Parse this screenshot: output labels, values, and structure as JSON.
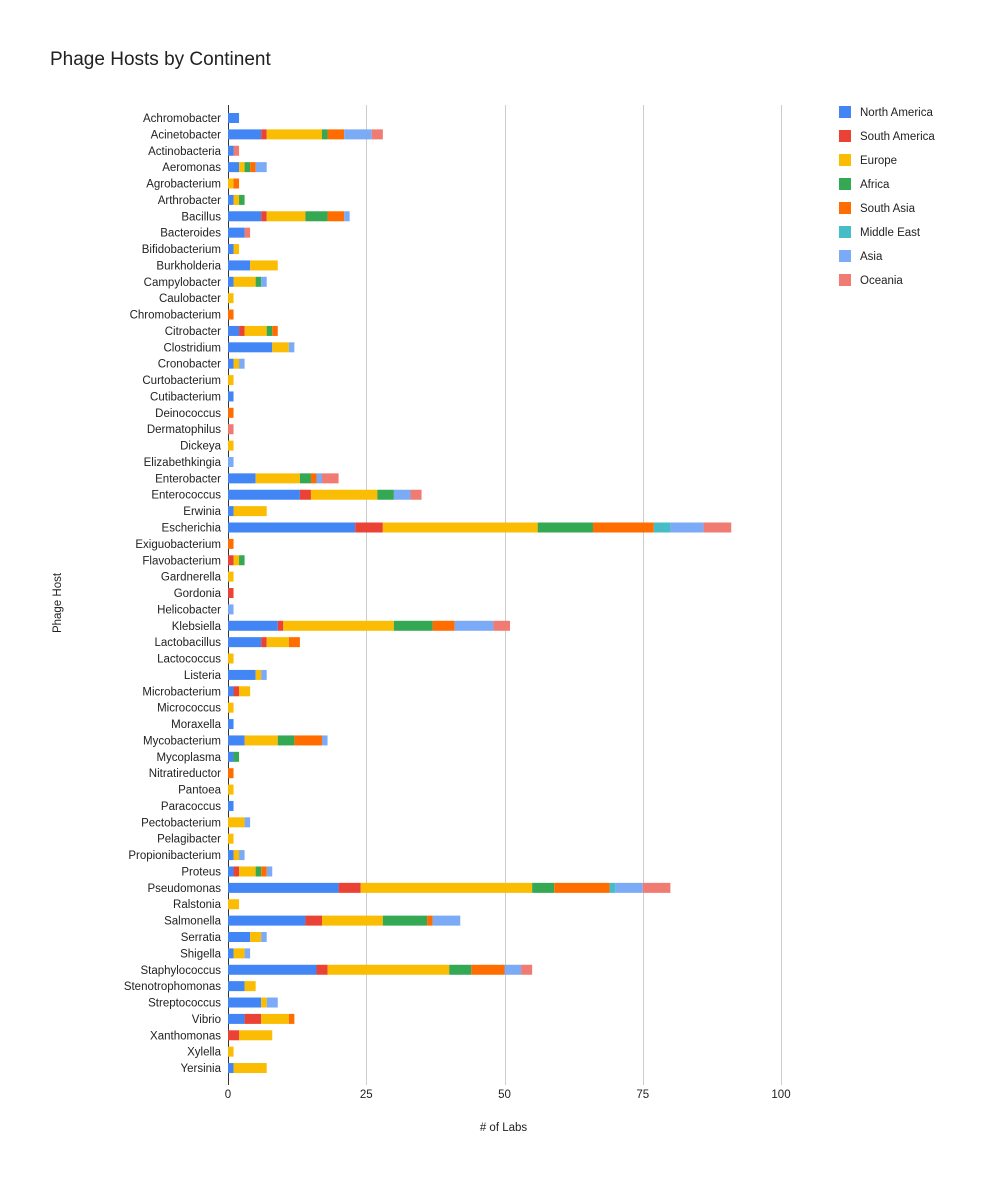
{
  "chart_data": {
    "type": "bar",
    "orientation": "horizontal",
    "stacked": true,
    "title": "Phage Hosts by Continent",
    "xlabel": "# of Labs",
    "ylabel": "Phage Host",
    "xlim": [
      0,
      100
    ],
    "xticks": [
      0,
      25,
      50,
      75,
      100
    ],
    "grid": true,
    "legend_position": "right",
    "categories": [
      "Achromobacter",
      "Acinetobacter",
      "Actinobacteria",
      "Aeromonas",
      "Agrobacterium",
      "Arthrobacter",
      "Bacillus",
      "Bacteroides",
      "Bifidobacterium",
      "Burkholderia",
      "Campylobacter",
      "Caulobacter",
      "Chromobacterium",
      "Citrobacter",
      "Clostridium",
      "Cronobacter",
      "Curtobacterium",
      "Cutibacterium",
      "Deinococcus",
      "Dermatophilus",
      "Dickeya",
      "Elizabethkingia",
      "Enterobacter",
      "Enterococcus",
      "Erwinia",
      "Escherichia",
      "Exiguobacterium",
      "Flavobacterium",
      "Gardnerella",
      "Gordonia",
      "Helicobacter",
      "Klebsiella",
      "Lactobacillus",
      "Lactococcus",
      "Listeria",
      "Microbacterium",
      "Micrococcus",
      "Moraxella",
      "Mycobacterium",
      "Mycoplasma",
      "Nitratireductor",
      "Pantoea",
      "Paracoccus",
      "Pectobacterium",
      "Pelagibacter",
      "Propionibacterium",
      "Proteus",
      "Pseudomonas",
      "Ralstonia",
      "Salmonella",
      "Serratia",
      "Shigella",
      "Staphylococcus",
      "Stenotrophomonas",
      "Streptococcus",
      "Vibrio",
      "Xanthomonas",
      "Xylella",
      "Yersinia"
    ],
    "series": [
      {
        "name": "North America",
        "color": "#4285f4",
        "values": [
          2,
          6,
          1,
          2,
          0,
          1,
          6,
          3,
          1,
          4,
          1,
          0,
          0,
          2,
          8,
          1,
          0,
          1,
          0,
          0,
          0,
          0,
          5,
          13,
          1,
          23,
          0,
          0,
          0,
          0,
          0,
          9,
          6,
          0,
          5,
          1,
          0,
          1,
          3,
          1,
          0,
          0,
          1,
          0,
          0,
          1,
          1,
          20,
          0,
          14,
          4,
          1,
          16,
          3,
          6,
          3,
          0,
          0,
          1
        ]
      },
      {
        "name": "South America",
        "color": "#ea4335",
        "values": [
          0,
          1,
          0,
          0,
          0,
          0,
          1,
          0,
          0,
          0,
          0,
          0,
          0,
          1,
          0,
          0,
          0,
          0,
          0,
          0,
          0,
          0,
          0,
          2,
          0,
          5,
          0,
          1,
          0,
          1,
          0,
          1,
          1,
          0,
          0,
          1,
          0,
          0,
          0,
          0,
          0,
          0,
          0,
          0,
          0,
          0,
          1,
          4,
          0,
          3,
          0,
          0,
          2,
          0,
          0,
          3,
          2,
          0,
          0
        ]
      },
      {
        "name": "Europe",
        "color": "#fbbc04",
        "values": [
          0,
          10,
          0,
          1,
          1,
          1,
          7,
          0,
          1,
          5,
          4,
          1,
          0,
          4,
          3,
          1,
          1,
          0,
          0,
          0,
          1,
          0,
          8,
          12,
          6,
          28,
          0,
          1,
          1,
          0,
          0,
          20,
          4,
          1,
          1,
          2,
          1,
          0,
          6,
          0,
          0,
          1,
          0,
          3,
          1,
          1,
          3,
          31,
          2,
          11,
          2,
          2,
          22,
          2,
          1,
          5,
          6,
          1,
          6
        ]
      },
      {
        "name": "Africa",
        "color": "#34a853",
        "values": [
          0,
          1,
          0,
          1,
          0,
          1,
          4,
          0,
          0,
          0,
          1,
          0,
          0,
          1,
          0,
          0,
          0,
          0,
          0,
          0,
          0,
          0,
          2,
          3,
          0,
          10,
          0,
          1,
          0,
          0,
          0,
          7,
          0,
          0,
          0,
          0,
          0,
          0,
          3,
          1,
          0,
          0,
          0,
          0,
          0,
          0,
          1,
          4,
          0,
          8,
          0,
          0,
          4,
          0,
          0,
          0,
          0,
          0,
          0
        ]
      },
      {
        "name": "South Asia",
        "color": "#ff6d01",
        "values": [
          0,
          3,
          0,
          1,
          1,
          0,
          3,
          0,
          0,
          0,
          0,
          0,
          1,
          1,
          0,
          0,
          0,
          0,
          1,
          0,
          0,
          0,
          1,
          0,
          0,
          11,
          1,
          0,
          0,
          0,
          0,
          4,
          2,
          0,
          0,
          0,
          0,
          0,
          5,
          0,
          1,
          0,
          0,
          0,
          0,
          0,
          1,
          10,
          0,
          1,
          0,
          0,
          6,
          0,
          0,
          1,
          0,
          0,
          0
        ]
      },
      {
        "name": "Middle East",
        "color": "#46bdc6",
        "values": [
          0,
          0,
          0,
          0,
          0,
          0,
          0,
          0,
          0,
          0,
          0,
          0,
          0,
          0,
          0,
          0,
          0,
          0,
          0,
          0,
          0,
          0,
          0,
          0,
          0,
          3,
          0,
          0,
          0,
          0,
          0,
          0,
          0,
          0,
          0,
          0,
          0,
          0,
          0,
          0,
          0,
          0,
          0,
          0,
          0,
          0,
          0,
          1,
          0,
          0,
          0,
          0,
          0,
          0,
          0,
          0,
          0,
          0,
          0
        ]
      },
      {
        "name": "Asia",
        "color": "#7baaf7",
        "values": [
          0,
          5,
          0,
          2,
          0,
          0,
          1,
          0,
          0,
          0,
          1,
          0,
          0,
          0,
          1,
          1,
          0,
          0,
          0,
          0,
          0,
          1,
          1,
          3,
          0,
          6,
          0,
          0,
          0,
          0,
          1,
          7,
          0,
          0,
          1,
          0,
          0,
          0,
          1,
          0,
          0,
          0,
          0,
          1,
          0,
          1,
          1,
          5,
          0,
          5,
          1,
          1,
          3,
          0,
          2,
          0,
          0,
          0,
          0
        ]
      },
      {
        "name": "Oceania",
        "color": "#f07b72",
        "values": [
          0,
          2,
          1,
          0,
          0,
          0,
          0,
          1,
          0,
          0,
          0,
          0,
          0,
          0,
          0,
          0,
          0,
          0,
          0,
          1,
          0,
          0,
          3,
          2,
          0,
          5,
          0,
          0,
          0,
          0,
          0,
          3,
          0,
          0,
          0,
          0,
          0,
          0,
          0,
          0,
          0,
          0,
          0,
          0,
          0,
          0,
          0,
          5,
          0,
          0,
          0,
          0,
          2,
          0,
          0,
          0,
          0,
          0,
          0
        ]
      }
    ]
  }
}
